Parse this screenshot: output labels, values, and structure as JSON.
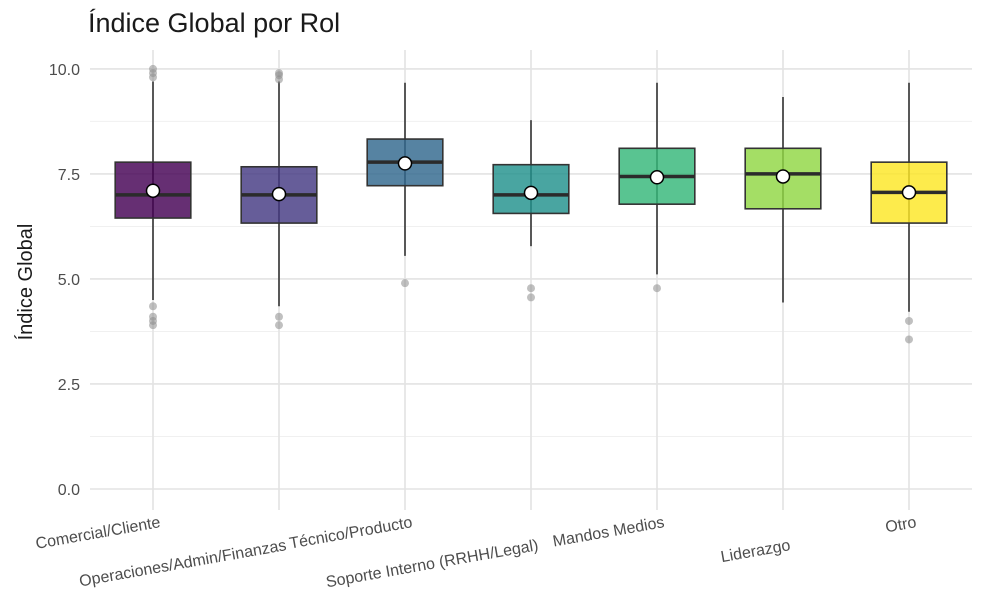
{
  "chart_data": {
    "type": "boxplot",
    "title": "Índice Global por Rol",
    "xlabel": "",
    "ylabel": "Índice Global",
    "ylim": [
      -0.5,
      10.45
    ],
    "yticks": [
      "0.0",
      "2.5",
      "5.0",
      "7.5",
      "10.0"
    ],
    "grid": true,
    "categories": [
      "Comercial/Cliente",
      "Operaciones/Admin/Finanzas",
      "Técnico/Producto",
      "Soporte Interno (RRHH/Legal)",
      "Mandos Medios",
      "Liderazgo",
      "Otro"
    ],
    "series": [
      {
        "category": "Comercial/Cliente",
        "color": "#440154",
        "whisker_low": 4.5,
        "q1": 6.45,
        "median": 7.0,
        "q3": 7.78,
        "whisker_high": 9.7,
        "mean": 7.1,
        "outliers": [
          4.35,
          4.1,
          4.0,
          3.9,
          9.8,
          9.9,
          10.0
        ]
      },
      {
        "category": "Operaciones/Admin/Finanzas",
        "color": "#443983",
        "whisker_low": 4.35,
        "q1": 6.33,
        "median": 7.0,
        "q3": 7.67,
        "whisker_high": 9.7,
        "mean": 7.02,
        "outliers": [
          4.1,
          3.9,
          9.75,
          9.85,
          9.9
        ]
      },
      {
        "category": "Técnico/Producto",
        "color": "#31688e",
        "whisker_low": 5.55,
        "q1": 7.22,
        "median": 7.78,
        "q3": 8.33,
        "whisker_high": 9.67,
        "mean": 7.75,
        "outliers": [
          4.9
        ]
      },
      {
        "category": "Soporte Interno (RRHH/Legal)",
        "color": "#21918c",
        "whisker_low": 5.78,
        "q1": 6.56,
        "median": 7.0,
        "q3": 7.72,
        "whisker_high": 8.78,
        "mean": 7.05,
        "outliers": [
          4.78,
          4.56
        ]
      },
      {
        "category": "Mandos Medios",
        "color": "#35b779",
        "whisker_low": 5.11,
        "q1": 6.78,
        "median": 7.44,
        "q3": 8.11,
        "whisker_high": 9.67,
        "mean": 7.42,
        "outliers": [
          4.78
        ]
      },
      {
        "category": "Liderazgo",
        "color": "#90d743",
        "whisker_low": 4.44,
        "q1": 6.67,
        "median": 7.5,
        "q3": 8.11,
        "whisker_high": 9.33,
        "mean": 7.44,
        "outliers": []
      },
      {
        "category": "Otro",
        "color": "#fde725",
        "whisker_low": 4.22,
        "q1": 6.33,
        "median": 7.06,
        "q3": 7.78,
        "whisker_high": 9.67,
        "mean": 7.06,
        "outliers": [
          4.0,
          3.56
        ]
      }
    ]
  }
}
